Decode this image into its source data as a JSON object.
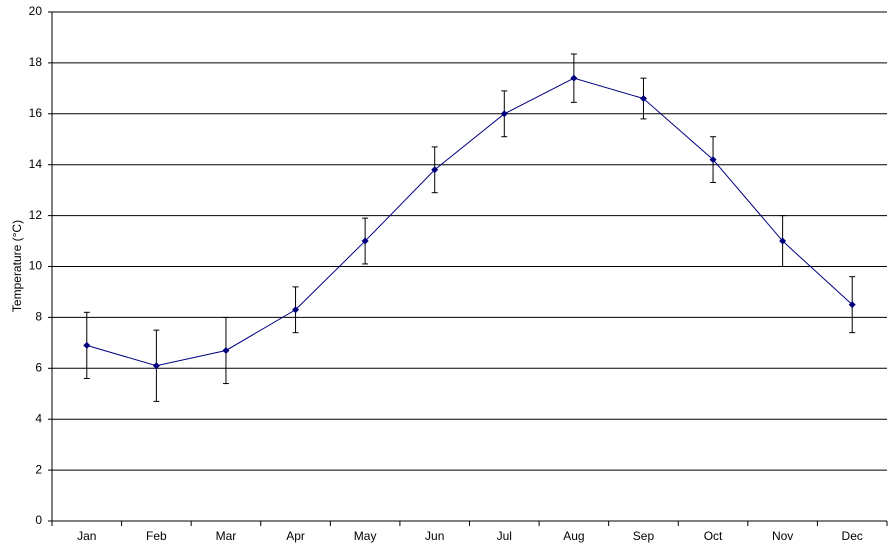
{
  "chart_data": {
    "type": "line",
    "y_label": "Temperature (°C)",
    "categories": [
      "Jan",
      "Feb",
      "Mar",
      "Apr",
      "May",
      "Jun",
      "Jul",
      "Aug",
      "Sep",
      "Oct",
      "Nov",
      "Dec"
    ],
    "values": [
      6.9,
      6.1,
      6.7,
      8.3,
      11.0,
      13.8,
      16.0,
      17.4,
      16.6,
      14.2,
      11.0,
      8.5
    ],
    "errors": [
      1.3,
      1.4,
      1.3,
      0.9,
      0.9,
      0.9,
      0.9,
      0.95,
      0.8,
      0.9,
      1.0,
      1.1
    ],
    "color": "#00007f",
    "ylim": [
      0,
      20
    ],
    "yticks": [
      0,
      2,
      4,
      6,
      8,
      10,
      12,
      14,
      16,
      18,
      20
    ],
    "grid": true
  }
}
